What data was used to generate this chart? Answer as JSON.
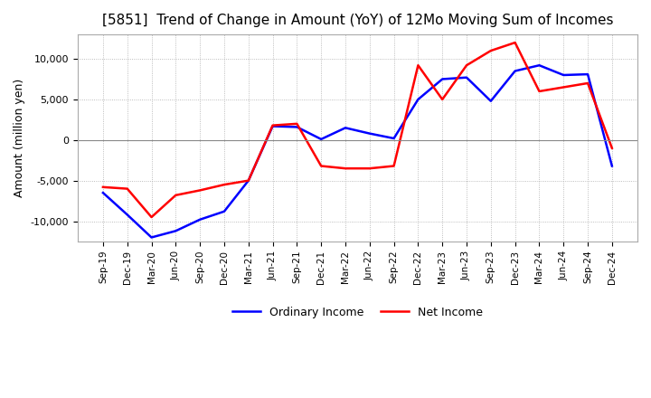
{
  "title": "[5851]  Trend of Change in Amount (YoY) of 12Mo Moving Sum of Incomes",
  "ylabel": "Amount (million yen)",
  "ylim": [
    -12500,
    13000
  ],
  "yticks": [
    -10000,
    -5000,
    0,
    5000,
    10000
  ],
  "x_labels": [
    "Sep-19",
    "Dec-19",
    "Mar-20",
    "Jun-20",
    "Sep-20",
    "Dec-20",
    "Mar-21",
    "Jun-21",
    "Sep-21",
    "Dec-21",
    "Mar-22",
    "Jun-22",
    "Sep-22",
    "Dec-22",
    "Mar-23",
    "Jun-23",
    "Sep-23",
    "Dec-23",
    "Mar-24",
    "Jun-24",
    "Sep-24",
    "Dec-24"
  ],
  "ordinary_income": [
    -6500,
    -9200,
    -12000,
    -11200,
    -9800,
    -8800,
    -5000,
    1700,
    1600,
    100,
    1500,
    800,
    200,
    5000,
    7500,
    7700,
    4800,
    8500,
    9200,
    8000,
    8100,
    -3200
  ],
  "net_income": [
    -5800,
    -6000,
    -9500,
    -6800,
    -6200,
    -5500,
    -5000,
    1800,
    2000,
    -3200,
    -3500,
    -3500,
    -3200,
    9200,
    5000,
    9200,
    11000,
    12000,
    6000,
    6500,
    7000,
    -1000
  ],
  "ordinary_color": "#0000FF",
  "net_color": "#FF0000",
  "legend_ordinary": "Ordinary Income",
  "legend_net": "Net Income",
  "background_color": "#FFFFFF",
  "plot_bg_color": "#FFFFFF",
  "grid_color": "#AAAAAA"
}
